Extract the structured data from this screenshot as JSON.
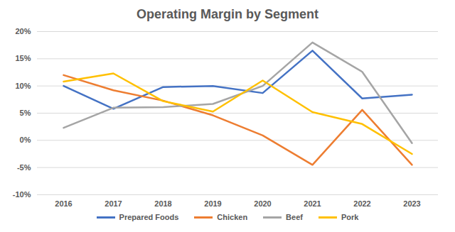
{
  "chart_data": {
    "type": "line",
    "title": "Operating Margin by Segment",
    "categories": [
      "2016",
      "2017",
      "2018",
      "2019",
      "2020",
      "2021",
      "2022",
      "2023"
    ],
    "series": [
      {
        "name": "Prepared Foods",
        "color": "#4472c4",
        "values": [
          10.0,
          5.8,
          9.8,
          10.0,
          8.7,
          16.5,
          7.7,
          8.4
        ]
      },
      {
        "name": "Chicken",
        "color": "#ed7d31",
        "values": [
          12.0,
          9.2,
          7.3,
          4.6,
          0.9,
          -4.5,
          5.6,
          -4.5
        ]
      },
      {
        "name": "Beef",
        "color": "#a5a5a5",
        "values": [
          2.3,
          6.0,
          6.1,
          6.7,
          10.0,
          18.0,
          12.6,
          -0.5
        ]
      },
      {
        "name": "Pork",
        "color": "#ffc000",
        "values": [
          10.8,
          12.3,
          7.2,
          5.3,
          11.0,
          5.2,
          3.0,
          -2.5
        ]
      }
    ],
    "ylim": [
      -10,
      20
    ],
    "yticks": [
      {
        "value": -10,
        "label": "-10%"
      },
      {
        "value": -5,
        "label": "-5%"
      },
      {
        "value": 0,
        "label": "0%"
      },
      {
        "value": 5,
        "label": "5%"
      },
      {
        "value": 10,
        "label": "10%"
      },
      {
        "value": 15,
        "label": "15%"
      },
      {
        "value": 20,
        "label": "20%"
      }
    ],
    "grid": true,
    "legend": "bottom"
  }
}
